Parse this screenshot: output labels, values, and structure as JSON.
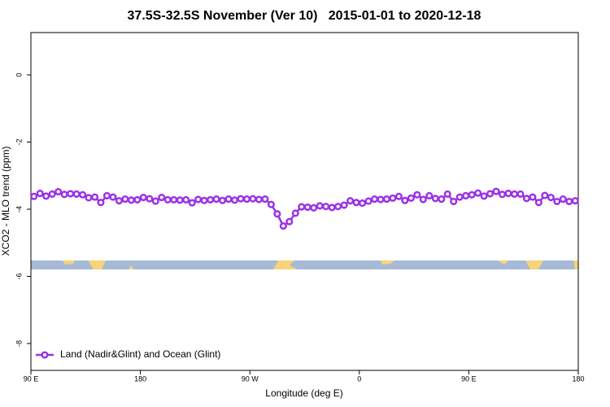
{
  "chart_data": {
    "type": "line",
    "title": "37.5S-32.5S November (Ver 10)   2015-01-01 to 2020-12-18",
    "x_label": "Longitude (deg E)",
    "y_label": "XCO2 - MLO trend (ppm)",
    "xlim": [
      90,
      540
    ],
    "xticks": [
      {
        "value": 90,
        "label": "90 E"
      },
      {
        "value": 180,
        "label": "180"
      },
      {
        "value": 270,
        "label": "90 W"
      },
      {
        "value": 360,
        "label": "0"
      },
      {
        "value": 450,
        "label": "90 E"
      },
      {
        "value": 540,
        "label": "180"
      }
    ],
    "ylim": [
      -8.8,
      1.26
    ],
    "yticks": [
      0,
      -2,
      -4,
      -6,
      -8
    ],
    "legend": "bottom-left",
    "x": [
      92.5,
      97.5,
      102.5,
      107.5,
      112.5,
      117.5,
      122.5,
      127.5,
      132.5,
      137.5,
      142.5,
      147.5,
      152.5,
      157.5,
      162.5,
      167.5,
      172.5,
      177.5,
      182.5,
      187.5,
      192.5,
      197.5,
      202.5,
      207.5,
      212.5,
      217.5,
      222.5,
      227.5,
      232.5,
      237.5,
      242.5,
      247.5,
      252.5,
      257.5,
      262.5,
      267.5,
      272.5,
      277.5,
      282.5,
      287.5,
      292.5,
      297.5,
      302.5,
      307.5,
      312.5,
      317.5,
      322.5,
      327.5,
      332.5,
      337.5,
      342.5,
      347.5,
      352.5,
      357.5,
      362.5,
      367.5,
      372.5,
      377.5,
      382.5,
      387.5,
      392.5,
      397.5,
      402.5,
      407.5,
      412.5,
      417.5,
      422.5,
      427.5,
      432.5,
      437.5,
      442.5,
      447.5,
      452.5,
      457.5,
      462.5,
      467.5,
      472.5,
      477.5,
      482.5,
      487.5,
      492.5,
      497.5,
      502.5,
      507.5,
      512.5,
      517.5,
      522.5,
      527.5,
      532.5,
      537.5
    ],
    "series": [
      {
        "name": "Land (Nadir&Glint) and Ocean (Glint)",
        "color": "#9b30e8",
        "values": [
          -3.62,
          -3.53,
          -3.61,
          -3.55,
          -3.48,
          -3.56,
          -3.54,
          -3.55,
          -3.57,
          -3.66,
          -3.64,
          -3.8,
          -3.6,
          -3.64,
          -3.75,
          -3.7,
          -3.73,
          -3.72,
          -3.65,
          -3.69,
          -3.76,
          -3.65,
          -3.72,
          -3.72,
          -3.73,
          -3.72,
          -3.81,
          -3.71,
          -3.74,
          -3.72,
          -3.7,
          -3.74,
          -3.7,
          -3.73,
          -3.69,
          -3.7,
          -3.69,
          -3.71,
          -3.7,
          -3.86,
          -4.14,
          -4.5,
          -4.37,
          -4.12,
          -3.93,
          -3.94,
          -3.96,
          -3.9,
          -3.92,
          -3.95,
          -3.92,
          -3.88,
          -3.75,
          -3.8,
          -3.82,
          -3.76,
          -3.7,
          -3.71,
          -3.7,
          -3.67,
          -3.62,
          -3.74,
          -3.67,
          -3.57,
          -3.71,
          -3.6,
          -3.68,
          -3.7,
          -3.55,
          -3.77,
          -3.64,
          -3.6,
          -3.57,
          -3.52,
          -3.61,
          -3.54,
          -3.47,
          -3.56,
          -3.53,
          -3.55,
          -3.55,
          -3.68,
          -3.64,
          -3.8,
          -3.59,
          -3.65,
          -3.77,
          -3.7,
          -3.77,
          -3.75
        ]
      }
    ]
  }
}
